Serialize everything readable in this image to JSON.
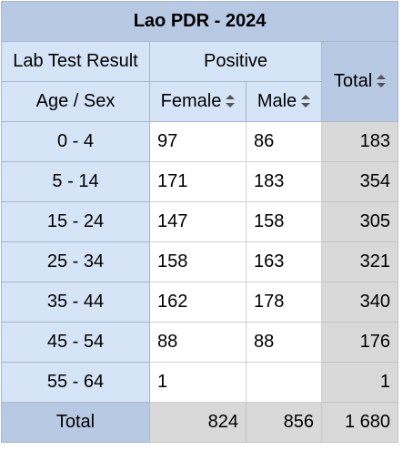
{
  "title": "Lao PDR - 2024",
  "header": {
    "row_dim_label": "Lab Test Result",
    "col_dim_label": "Age / Sex",
    "group_label": "Positive",
    "columns": [
      "Female",
      "Male"
    ],
    "total_label": "Total"
  },
  "rows": [
    {
      "label": "0 - 4",
      "female": "97",
      "male": "86",
      "total": "183"
    },
    {
      "label": "5 - 14",
      "female": "171",
      "male": "183",
      "total": "354"
    },
    {
      "label": "15 - 24",
      "female": "147",
      "male": "158",
      "total": "305"
    },
    {
      "label": "25 - 34",
      "female": "158",
      "male": "163",
      "total": "321"
    },
    {
      "label": "35 - 44",
      "female": "162",
      "male": "178",
      "total": "340"
    },
    {
      "label": "45 - 54",
      "female": "88",
      "male": "88",
      "total": "176"
    },
    {
      "label": "55 - 64",
      "female": "1",
      "male": "",
      "total": "1"
    }
  ],
  "totals": {
    "label": "Total",
    "female": "824",
    "male": "856",
    "grand": "1 680"
  },
  "colors": {
    "header_dark": "#b8c9e3",
    "header_light": "#d6e4f8",
    "total_cell": "#d9d9d9"
  }
}
